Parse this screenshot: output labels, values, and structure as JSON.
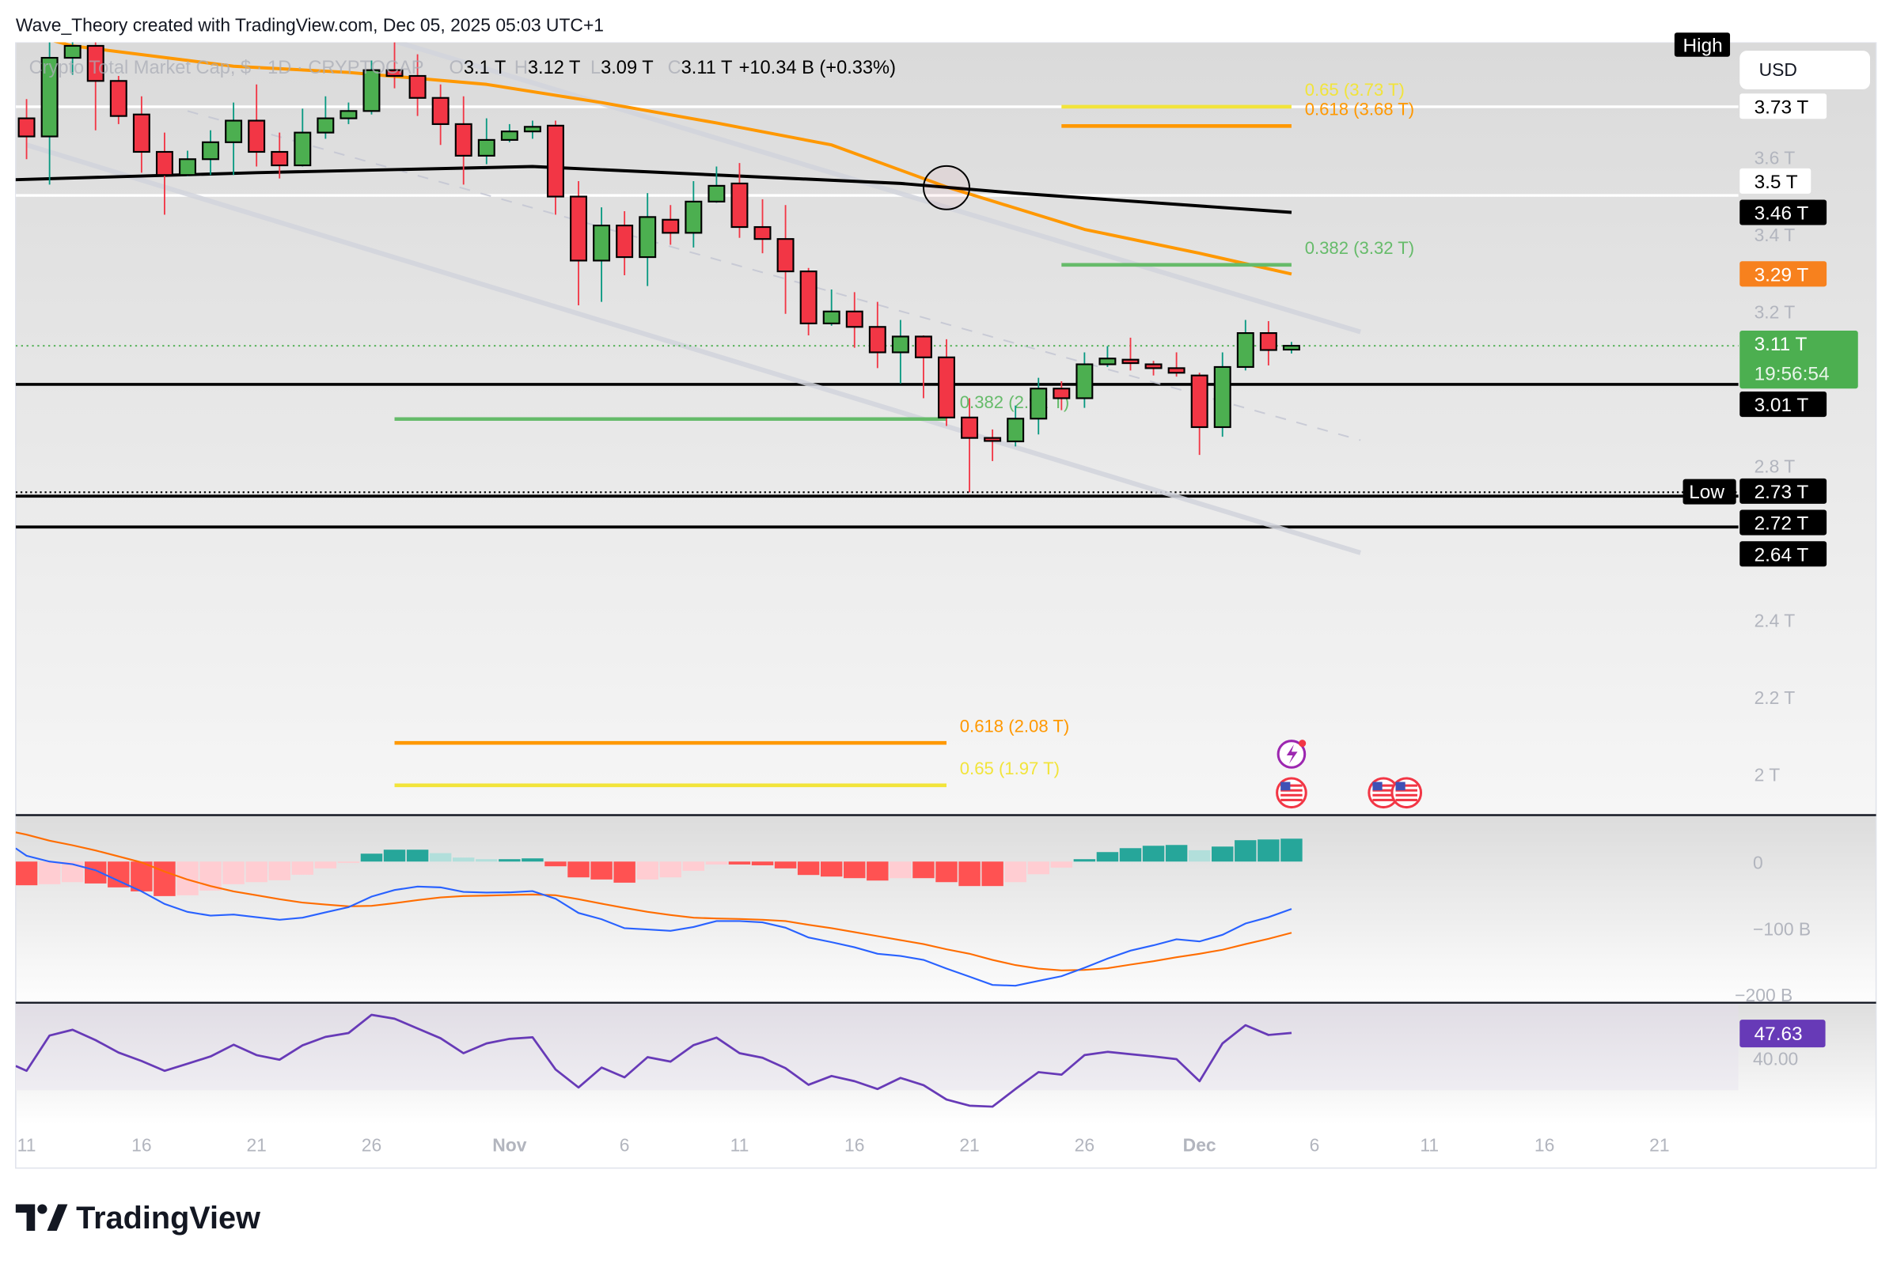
{
  "header": {
    "attribution": "Wave_Theory created with TradingView.com, Dec 05, 2025 05:03 UTC+1"
  },
  "legend": {
    "symbol": "Crypto Total Market Cap, $ · 1D · CRYPTOCAP",
    "o_label": "O",
    "o": "3.1 T",
    "h_label": "H",
    "h": "3.12 T",
    "l_label": "L",
    "l": "3.09 T",
    "c_label": "C",
    "c": "3.11 T",
    "change": "+10.34 B (+0.33%)"
  },
  "currency": "USD",
  "high_tag": "High",
  "low_tag": "Low",
  "price_tags": [
    {
      "label": "3.73 T",
      "bg": "#ffffff",
      "fg": "#000000"
    },
    {
      "label": "3.5 T",
      "bg": "#ffffff",
      "fg": "#000000"
    },
    {
      "label": "3.46 T",
      "bg": "#000000",
      "fg": "#ffffff"
    },
    {
      "label": "3.29 T",
      "bg": "#f7811e",
      "fg": "#ffffff"
    },
    {
      "label": "3.11 T",
      "sub": "19:56:54",
      "bg": "#4caf50",
      "fg": "#ffffff"
    },
    {
      "label": "3.01 T",
      "bg": "#000000",
      "fg": "#ffffff"
    },
    {
      "label": "2.73 T",
      "bg": "#000000",
      "fg": "#ffffff"
    },
    {
      "label": "2.72 T",
      "bg": "#000000",
      "fg": "#ffffff"
    },
    {
      "label": "2.64 T",
      "bg": "#000000",
      "fg": "#ffffff"
    }
  ],
  "colors": {
    "up_body": "#4caf50",
    "down_body": "#f23645",
    "up_wick": "#089981",
    "down_wick": "#f23645",
    "ma_fast": "#ff9800",
    "ma_slow": "#000000",
    "channel": "#d1d4dc",
    "macd_line": "#2962ff",
    "signal_line": "#ff6d00",
    "rsi_line": "#673ab7",
    "hist_up_strong": "#26a69a",
    "hist_up_weak": "#b2dfdb",
    "hist_down_strong": "#ff5252",
    "hist_down_weak": "#ffcdd2"
  },
  "branding": {
    "logo_text": "TradingView"
  },
  "chart_data": [
    {
      "type": "candlestick",
      "title": "Crypto Total Market Cap, $ · 1D · CRYPTOCAP",
      "y_unit": "T USD",
      "ylim": [
        1.87,
        3.9
      ],
      "grid": false,
      "candles": [
        {
          "d": "2025-10-11",
          "o": 3.7,
          "h": 3.75,
          "l": 3.594,
          "c": 3.653
        },
        {
          "d": "2025-10-12",
          "o": 3.653,
          "h": 3.897,
          "l": 3.528,
          "c": 3.857
        },
        {
          "d": "2025-10-13",
          "o": 3.857,
          "h": 3.913,
          "l": 3.813,
          "c": 3.888
        },
        {
          "d": "2025-10-14",
          "o": 3.888,
          "h": 3.897,
          "l": 3.669,
          "c": 3.797
        },
        {
          "d": "2025-10-15",
          "o": 3.797,
          "h": 3.81,
          "l": 3.685,
          "c": 3.706
        },
        {
          "d": "2025-10-16",
          "o": 3.71,
          "h": 3.757,
          "l": 3.559,
          "c": 3.613
        },
        {
          "d": "2025-10-17",
          "o": 3.613,
          "h": 3.663,
          "l": 3.45,
          "c": 3.553
        },
        {
          "d": "2025-10-18",
          "o": 3.553,
          "h": 3.616,
          "l": 3.55,
          "c": 3.594
        },
        {
          "d": "2025-10-19",
          "o": 3.594,
          "h": 3.669,
          "l": 3.553,
          "c": 3.638
        },
        {
          "d": "2025-10-20",
          "o": 3.638,
          "h": 3.741,
          "l": 3.553,
          "c": 3.694
        },
        {
          "d": "2025-10-21",
          "o": 3.694,
          "h": 3.788,
          "l": 3.575,
          "c": 3.613
        },
        {
          "d": "2025-10-22",
          "o": 3.613,
          "h": 3.663,
          "l": 3.544,
          "c": 3.578
        },
        {
          "d": "2025-10-23",
          "o": 3.578,
          "h": 3.725,
          "l": 3.575,
          "c": 3.663
        },
        {
          "d": "2025-10-24",
          "o": 3.663,
          "h": 3.757,
          "l": 3.647,
          "c": 3.7
        },
        {
          "d": "2025-10-25",
          "o": 3.7,
          "h": 3.741,
          "l": 3.685,
          "c": 3.719
        },
        {
          "d": "2025-10-26",
          "o": 3.719,
          "h": 3.85,
          "l": 3.71,
          "c": 3.825
        },
        {
          "d": "2025-10-27",
          "o": 3.825,
          "h": 3.897,
          "l": 3.778,
          "c": 3.81
        },
        {
          "d": "2025-10-28",
          "o": 3.81,
          "h": 3.866,
          "l": 3.706,
          "c": 3.753
        },
        {
          "d": "2025-10-29",
          "o": 3.753,
          "h": 3.788,
          "l": 3.631,
          "c": 3.685
        },
        {
          "d": "2025-10-30",
          "o": 3.685,
          "h": 3.757,
          "l": 3.528,
          "c": 3.603
        },
        {
          "d": "2025-10-31",
          "o": 3.603,
          "h": 3.7,
          "l": 3.581,
          "c": 3.644
        },
        {
          "d": "2025-11-01",
          "o": 3.644,
          "h": 3.685,
          "l": 3.638,
          "c": 3.666
        },
        {
          "d": "2025-11-02",
          "o": 3.666,
          "h": 3.694,
          "l": 3.647,
          "c": 3.678
        },
        {
          "d": "2025-11-03",
          "o": 3.681,
          "h": 3.694,
          "l": 3.45,
          "c": 3.497
        },
        {
          "d": "2025-11-04",
          "o": 3.497,
          "h": 3.537,
          "l": 3.215,
          "c": 3.331
        },
        {
          "d": "2025-11-05",
          "o": 3.331,
          "h": 3.469,
          "l": 3.224,
          "c": 3.422
        },
        {
          "d": "2025-11-06",
          "o": 3.422,
          "h": 3.459,
          "l": 3.293,
          "c": 3.34
        },
        {
          "d": "2025-11-07",
          "o": 3.34,
          "h": 3.506,
          "l": 3.265,
          "c": 3.444
        },
        {
          "d": "2025-11-08",
          "o": 3.437,
          "h": 3.475,
          "l": 3.372,
          "c": 3.403
        },
        {
          "d": "2025-11-09",
          "o": 3.403,
          "h": 3.537,
          "l": 3.365,
          "c": 3.484
        },
        {
          "d": "2025-11-10",
          "o": 3.484,
          "h": 3.575,
          "l": 3.481,
          "c": 3.525
        },
        {
          "d": "2025-11-11",
          "o": 3.531,
          "h": 3.584,
          "l": 3.39,
          "c": 3.418
        },
        {
          "d": "2025-11-12",
          "o": 3.418,
          "h": 3.49,
          "l": 3.35,
          "c": 3.387
        },
        {
          "d": "2025-11-13",
          "o": 3.387,
          "h": 3.475,
          "l": 3.193,
          "c": 3.303
        },
        {
          "d": "2025-11-14",
          "o": 3.303,
          "h": 3.312,
          "l": 3.137,
          "c": 3.168
        },
        {
          "d": "2025-11-15",
          "o": 3.168,
          "h": 3.256,
          "l": 3.162,
          "c": 3.199
        },
        {
          "d": "2025-11-16",
          "o": 3.199,
          "h": 3.249,
          "l": 3.105,
          "c": 3.159
        },
        {
          "d": "2025-11-17",
          "o": 3.159,
          "h": 3.224,
          "l": 3.052,
          "c": 3.093
        },
        {
          "d": "2025-11-18",
          "o": 3.093,
          "h": 3.177,
          "l": 3.012,
          "c": 3.134
        },
        {
          "d": "2025-11-19",
          "o": 3.134,
          "h": 3.137,
          "l": 2.974,
          "c": 3.08
        },
        {
          "d": "2025-11-20",
          "o": 3.08,
          "h": 3.127,
          "l": 2.902,
          "c": 2.924
        },
        {
          "d": "2025-11-21",
          "o": 2.924,
          "h": 2.974,
          "l": 2.73,
          "c": 2.871
        },
        {
          "d": "2025-11-22",
          "o": 2.871,
          "h": 2.893,
          "l": 2.811,
          "c": 2.865
        },
        {
          "d": "2025-11-23",
          "o": 2.862,
          "h": 2.955,
          "l": 2.849,
          "c": 2.921
        },
        {
          "d": "2025-11-24",
          "o": 2.921,
          "h": 3.027,
          "l": 2.88,
          "c": 2.999
        },
        {
          "d": "2025-11-25",
          "o": 2.999,
          "h": 3.018,
          "l": 2.943,
          "c": 2.974
        },
        {
          "d": "2025-11-26",
          "o": 2.974,
          "h": 3.093,
          "l": 2.949,
          "c": 3.062
        },
        {
          "d": "2025-11-27",
          "o": 3.062,
          "h": 3.109,
          "l": 3.055,
          "c": 3.077
        },
        {
          "d": "2025-11-28",
          "o": 3.074,
          "h": 3.131,
          "l": 3.046,
          "c": 3.065
        },
        {
          "d": "2025-11-29",
          "o": 3.062,
          "h": 3.071,
          "l": 3.033,
          "c": 3.052
        },
        {
          "d": "2025-11-30",
          "o": 3.052,
          "h": 3.093,
          "l": 3.03,
          "c": 3.04
        },
        {
          "d": "2025-12-01",
          "o": 3.033,
          "h": 3.04,
          "l": 2.827,
          "c": 2.899
        },
        {
          "d": "2025-12-02",
          "o": 2.899,
          "h": 3.093,
          "l": 2.874,
          "c": 3.055
        },
        {
          "d": "2025-12-03",
          "o": 3.055,
          "h": 3.177,
          "l": 3.046,
          "c": 3.143
        },
        {
          "d": "2025-12-04",
          "o": 3.143,
          "h": 3.174,
          "l": 3.059,
          "c": 3.099
        },
        {
          "d": "2025-12-05",
          "o": 3.1,
          "h": 3.12,
          "l": 3.09,
          "c": 3.11
        }
      ],
      "moving_averages": [
        {
          "color_key": "ma_fast",
          "points": [
            [
              "2025-10-11",
              3.92
            ],
            [
              "2025-10-13",
              3.888
            ],
            [
              "2025-10-20",
              3.835
            ],
            [
              "2025-10-25",
              3.819
            ],
            [
              "2025-10-31",
              3.788
            ],
            [
              "2025-11-05",
              3.741
            ],
            [
              "2025-11-10",
              3.688
            ],
            [
              "2025-11-15",
              3.631
            ],
            [
              "2025-11-20",
              3.522
            ],
            [
              "2025-11-26",
              3.412
            ],
            [
              "2025-12-01",
              3.35
            ],
            [
              "2025-12-05",
              3.296
            ]
          ]
        },
        {
          "color_key": "ma_slow",
          "points": [
            [
              "2025-10-10",
              3.54
            ],
            [
              "2025-10-21",
              3.559
            ],
            [
              "2025-11-02",
              3.575
            ],
            [
              "2025-11-10",
              3.553
            ],
            [
              "2025-11-18",
              3.531
            ],
            [
              "2025-11-23",
              3.506
            ],
            [
              "2025-12-05",
              3.456
            ]
          ]
        }
      ],
      "horizontal_levels": [
        {
          "value": 3.73,
          "style": "white"
        },
        {
          "value": 3.5,
          "style": "white"
        },
        {
          "value": 3.01,
          "style": "black"
        },
        {
          "value": 2.73,
          "style": "dotted"
        },
        {
          "value": 2.72,
          "style": "black"
        },
        {
          "value": 2.64,
          "style": "black"
        }
      ],
      "current_price": 3.11,
      "trend_lines": [
        {
          "style": "solid",
          "from": [
            "2025-10-27",
            3.9
          ],
          "to": [
            "2025-12-08",
            3.146
          ]
        },
        {
          "style": "solid",
          "from": [
            "2025-10-11",
            3.631
          ],
          "to": [
            "2025-12-08",
            2.573
          ]
        },
        {
          "style": "dashed",
          "from": [
            "2025-10-18",
            3.719
          ],
          "to": [
            "2025-12-08",
            2.865
          ]
        }
      ],
      "fib_levels": [
        {
          "label": "0.65 (3.73 T)",
          "value": 3.73,
          "color": "#f2e43a",
          "from": "2025-11-25",
          "to": "2025-12-05"
        },
        {
          "label": "0.618 (3.68 T)",
          "value": 3.68,
          "color": "#ff9800",
          "from": "2025-11-25",
          "to": "2025-12-05"
        },
        {
          "label": "0.382 (3.32 T)",
          "value": 3.32,
          "color": "#66bb6a",
          "from": "2025-11-25",
          "to": "2025-12-05"
        },
        {
          "label": "0.382 (2.92 T)",
          "value": 2.92,
          "color": "#66bb6a",
          "from": "2025-10-27",
          "to": "2025-11-20"
        },
        {
          "label": "0.618 (2.08 T)",
          "value": 2.08,
          "color": "#ff9800",
          "from": "2025-10-27",
          "to": "2025-11-20"
        },
        {
          "label": "0.65 (1.97 T)",
          "value": 1.97,
          "color": "#f2e43a",
          "from": "2025-10-27",
          "to": "2025-11-20"
        }
      ],
      "circle_marker": {
        "date": "2025-11-20",
        "value": 3.52
      },
      "events": [
        {
          "type": "lightning",
          "date": "2025-12-05"
        },
        {
          "type": "us-flag",
          "date": "2025-12-05"
        },
        {
          "type": "us-flag",
          "date": "2025-12-09"
        },
        {
          "type": "us-flag",
          "date": "2025-12-10"
        }
      ],
      "price_ticks": [
        {
          "value": 3.6,
          "label": "3.6 T"
        },
        {
          "value": 3.4,
          "label": "3.4 T"
        },
        {
          "value": 3.2,
          "label": "3.2 T"
        },
        {
          "value": 2.8,
          "label": "2.8 T"
        },
        {
          "value": 2.4,
          "label": "2.4 T"
        },
        {
          "value": 2.2,
          "label": "2.2 T"
        },
        {
          "value": 2.0,
          "label": "2 T"
        }
      ],
      "x_ticks": [
        {
          "date": "2025-10-11",
          "label": "11"
        },
        {
          "date": "2025-10-16",
          "label": "16"
        },
        {
          "date": "2025-10-21",
          "label": "21"
        },
        {
          "date": "2025-10-26",
          "label": "26"
        },
        {
          "date": "2025-11-01",
          "label": "Nov"
        },
        {
          "date": "2025-11-06",
          "label": "6"
        },
        {
          "date": "2025-11-11",
          "label": "11"
        },
        {
          "date": "2025-11-16",
          "label": "16"
        },
        {
          "date": "2025-11-21",
          "label": "21"
        },
        {
          "date": "2025-11-26",
          "label": "26"
        },
        {
          "date": "2025-12-01",
          "label": "Dec"
        },
        {
          "date": "2025-12-06",
          "label": "6"
        },
        {
          "date": "2025-12-11",
          "label": "11"
        },
        {
          "date": "2025-12-16",
          "label": "16"
        },
        {
          "date": "2025-12-21",
          "label": "21"
        }
      ]
    },
    {
      "type": "bar+line",
      "y_unit": "B",
      "ylim": [
        -211,
        71
      ],
      "y_ticks": [
        {
          "value": 0,
          "label": "0"
        },
        {
          "value": -100,
          "label": "−100 B"
        },
        {
          "value": -200,
          "label": "−200 B"
        }
      ],
      "histogram": [
        -35.7,
        -34.1,
        -31.0,
        -33.0,
        -38.9,
        -44.9,
        -52.0,
        -50.8,
        -43.7,
        -34.1,
        -31.0,
        -28.2,
        -19.9,
        -10.3,
        -2.0,
        11.9,
        17.9,
        17.9,
        12.7,
        6.0,
        3.6,
        3.6,
        4.8,
        -7.1,
        -23.8,
        -27.0,
        -31.8,
        -27.0,
        -23.8,
        -13.9,
        -4.4,
        -4.4,
        -5.6,
        -10.3,
        -20.2,
        -22.6,
        -25.0,
        -28.6,
        -25.0,
        -25.0,
        -31.0,
        -36.9,
        -36.9,
        -31.0,
        -19.1,
        -9.1,
        3.6,
        14.3,
        20.2,
        23.8,
        25.0,
        17.1,
        22.6,
        32.2,
        33.3,
        34.5
      ],
      "macd": [
        8.7,
        0,
        -4.0,
        -13.1,
        -29.0,
        -44.9,
        -63.9,
        -75.8,
        -81.4,
        -79.8,
        -83.8,
        -87.7,
        -84.6,
        -76.6,
        -68.7,
        -52.8,
        -42.9,
        -37.7,
        -38.9,
        -45.7,
        -46.8,
        -46.4,
        -44.5,
        -56.0,
        -77.4,
        -86.9,
        -100.4,
        -102.4,
        -104.4,
        -98.5,
        -89.7,
        -89.7,
        -91.7,
        -99.6,
        -114.3,
        -121.5,
        -129.0,
        -138.9,
        -142.1,
        -148.1,
        -161.2,
        -173.5,
        -185.8,
        -187.0,
        -179.8,
        -172.7,
        -160.0,
        -146.1,
        -134.2,
        -126.2,
        -117.1,
        -120.3,
        -110.4,
        -93.3,
        -83.8,
        -71.5
      ],
      "signal": [
        40.5,
        31.4,
        24.6,
        16.7,
        7.9,
        -1.2,
        -15.1,
        -27.0,
        -36.9,
        -44.9,
        -50.8,
        -56.8,
        -61.9,
        -64.7,
        -67.5,
        -66.7,
        -62.7,
        -58.0,
        -54.0,
        -52.0,
        -51.2,
        -50.4,
        -49.6,
        -50.8,
        -56.8,
        -63.5,
        -69.9,
        -75.8,
        -80.6,
        -84.6,
        -85.8,
        -86.5,
        -87.7,
        -89.7,
        -95.3,
        -100.4,
        -106.4,
        -112.4,
        -118.3,
        -124.3,
        -132.2,
        -138.9,
        -148.1,
        -156.0,
        -161.2,
        -164.0,
        -163.2,
        -160.8,
        -155.2,
        -150.1,
        -144.1,
        -138.9,
        -133.0,
        -124.3,
        -116.3,
        -107.2
      ]
    },
    {
      "type": "line",
      "ylim": [
        20,
        57
      ],
      "band": [
        30,
        70
      ],
      "y_ticks": [
        {
          "value": 40,
          "label": "40.00"
        }
      ],
      "last_label": "47.63",
      "values": [
        36.0,
        46.8,
        48.6,
        45.4,
        41.6,
        39.0,
        36.0,
        38.2,
        40.4,
        44.0,
        40.8,
        39.4,
        43.8,
        46.4,
        47.6,
        53.2,
        52.0,
        49.0,
        46.0,
        41.4,
        44.4,
        45.8,
        46.3,
        36.4,
        30.9,
        37.0,
        34.0,
        40.2,
        38.8,
        43.9,
        46.2,
        41.4,
        40.0,
        36.8,
        31.7,
        34.4,
        32.8,
        30.4,
        33.8,
        31.6,
        27.2,
        25.3,
        25.0,
        30.4,
        35.6,
        34.8,
        40.8,
        41.8,
        41.1,
        40.4,
        39.6,
        32.8,
        44.4,
        50.0,
        47.0,
        47.63
      ]
    }
  ]
}
